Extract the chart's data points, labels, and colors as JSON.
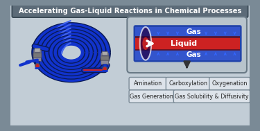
{
  "title": "Accelerating Gas-Liquid Reactions in Chemical Processes",
  "title_bg": "#5c6b78",
  "title_color": "#ffffff",
  "bg_color": "#7a8a96",
  "panel_bg": "#c2cdd6",
  "gas_label": "Gas",
  "liquid_label": "Liquid",
  "app_boxes_row1": [
    "Amination",
    "Carboxylation",
    "Oxygenation"
  ],
  "app_boxes_row2": [
    "Gas Generation",
    "Gas Solubility & Diffusivity"
  ],
  "app_box_bg": "#dde3ea",
  "app_box_border": "#7a8a96",
  "coil_color": "#1133cc",
  "coil_highlight": "#4466ee",
  "red_tube_color": "#cc2222",
  "connector_body": "#888898",
  "connector_dark": "#555565",
  "outer_border": "#5a6a76",
  "tube_diagram_bg": "#b8c4cc",
  "tube_diagram_border": "#6a7a86",
  "gas_blue_outer": "#2244aa",
  "gas_blue_inner": "#3355cc",
  "liquid_red": "#cc2222",
  "liquid_dark_edge": "#551122",
  "down_arrow_color": "#333333",
  "white": "#ffffff"
}
